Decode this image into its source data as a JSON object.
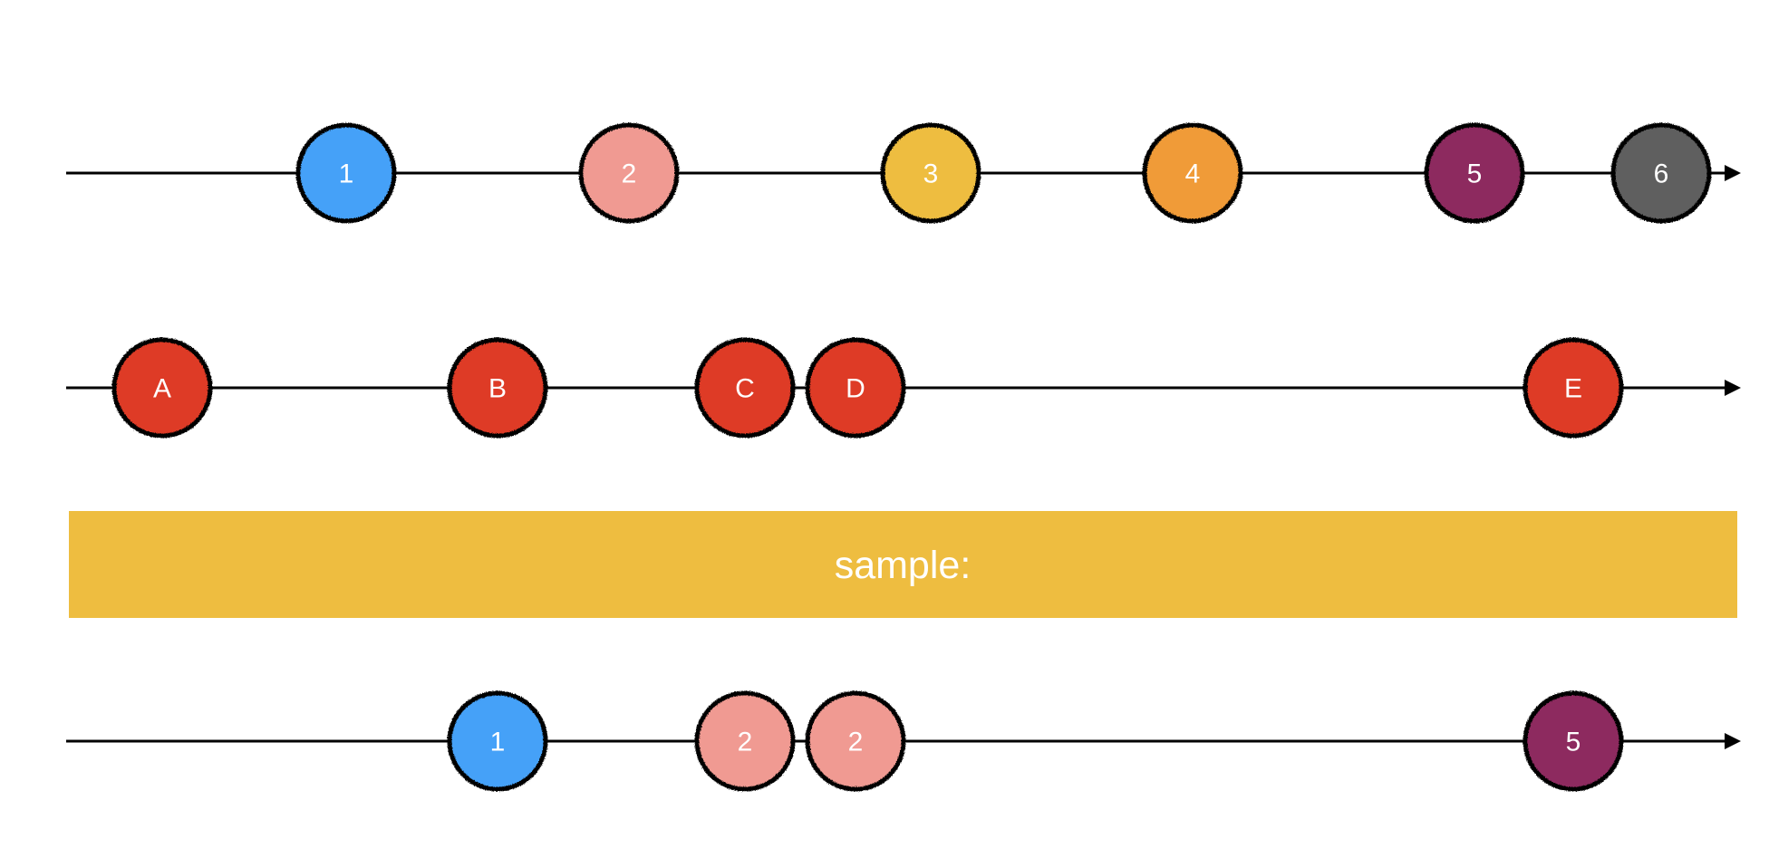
{
  "streams": [
    {
      "id": "source",
      "marbles": [
        {
          "label": "1",
          "color": "#45A1F8"
        },
        {
          "label": "2",
          "color": "#F09A92"
        },
        {
          "label": "3",
          "color": "#EEBD40"
        },
        {
          "label": "4",
          "color": "#F09B37"
        },
        {
          "label": "5",
          "color": "#8D2A5E"
        },
        {
          "label": "6",
          "color": "#5E5E5E"
        }
      ]
    },
    {
      "id": "sampler",
      "marbles": [
        {
          "label": "A",
          "color": "#DE3A28"
        },
        {
          "label": "B",
          "color": "#DE3A28"
        },
        {
          "label": "C",
          "color": "#DE3A28"
        },
        {
          "label": "D",
          "color": "#DE3A28"
        },
        {
          "label": "E",
          "color": "#DE3A28"
        }
      ]
    },
    {
      "id": "output",
      "marbles": [
        {
          "label": "1",
          "color": "#45A1F8"
        },
        {
          "label": "2",
          "color": "#F09A92"
        },
        {
          "label": "2",
          "color": "#F09A92"
        },
        {
          "label": "5",
          "color": "#8D2A5E"
        }
      ]
    }
  ],
  "operator": {
    "label": "sample:",
    "color": "#EEBD40"
  }
}
